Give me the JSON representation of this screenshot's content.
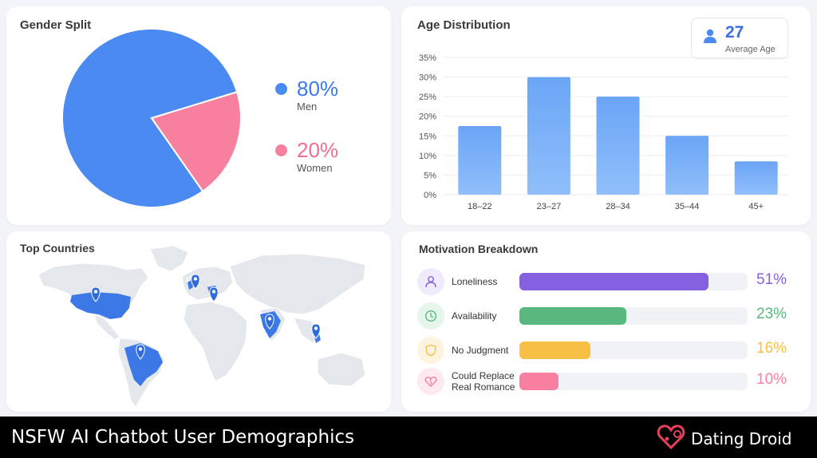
{
  "footer": {
    "title": "NSFW AI Chatbot User Demographics",
    "brand": "Dating Droid"
  },
  "gender": {
    "title": "Gender Split",
    "men": {
      "pct": "80%",
      "label": "Men",
      "color": "#4a8af1"
    },
    "women": {
      "pct": "20%",
      "label": "Women",
      "color": "#f7809f"
    }
  },
  "age": {
    "title": "Age Distribution",
    "average": {
      "value": "27",
      "label": "Average Age"
    }
  },
  "countries": {
    "title": "Top Countries",
    "markers": [
      "United States",
      "United Kingdom",
      "Germany",
      "India",
      "Philippines",
      "Brazil"
    ]
  },
  "motivation": {
    "title": "Motivation Breakdown",
    "items": [
      {
        "label": "Loneliness",
        "pct": "51%",
        "value": 0.83,
        "color": "#8561df",
        "bg": "#efeafc",
        "icon": "person-icon"
      },
      {
        "label": "Availability",
        "pct": "23%",
        "value": 0.47,
        "color": "#58b87e",
        "bg": "#e7f6ec",
        "icon": "clock-icon"
      },
      {
        "label": "No Judgment",
        "pct": "16%",
        "value": 0.31,
        "color": "#f8bf45",
        "bg": "#fdf4e0",
        "icon": "shield-icon"
      },
      {
        "label": "Could Replace\nReal Romance",
        "pct": "10%",
        "value": 0.17,
        "color": "#f77fa0",
        "bg": "#fde9ef",
        "icon": "heart-icon"
      }
    ]
  },
  "chart_data": [
    {
      "type": "pie",
      "title": "Gender Split",
      "categories": [
        "Men",
        "Women"
      ],
      "values": [
        80,
        20
      ],
      "colors": [
        "#4a8af1",
        "#f7809f"
      ],
      "legend": "right"
    },
    {
      "type": "bar",
      "title": "Age Distribution",
      "categories": [
        "18–22",
        "23–27",
        "28–34",
        "35–44",
        "45+"
      ],
      "values": [
        17.5,
        30,
        25,
        15,
        8.5
      ],
      "ylim": [
        0,
        35
      ],
      "yticks": [
        "0%",
        "5%",
        "10%",
        "15%",
        "20%",
        "25%",
        "30%",
        "35%"
      ],
      "grid": true,
      "color": "#6aa5f6"
    },
    {
      "type": "bar",
      "title": "Motivation Breakdown",
      "categories": [
        "Loneliness",
        "Availability",
        "No Judgment",
        "Could Replace Real Romance"
      ],
      "values": [
        51,
        23,
        16,
        10
      ],
      "orientation": "horizontal"
    }
  ]
}
